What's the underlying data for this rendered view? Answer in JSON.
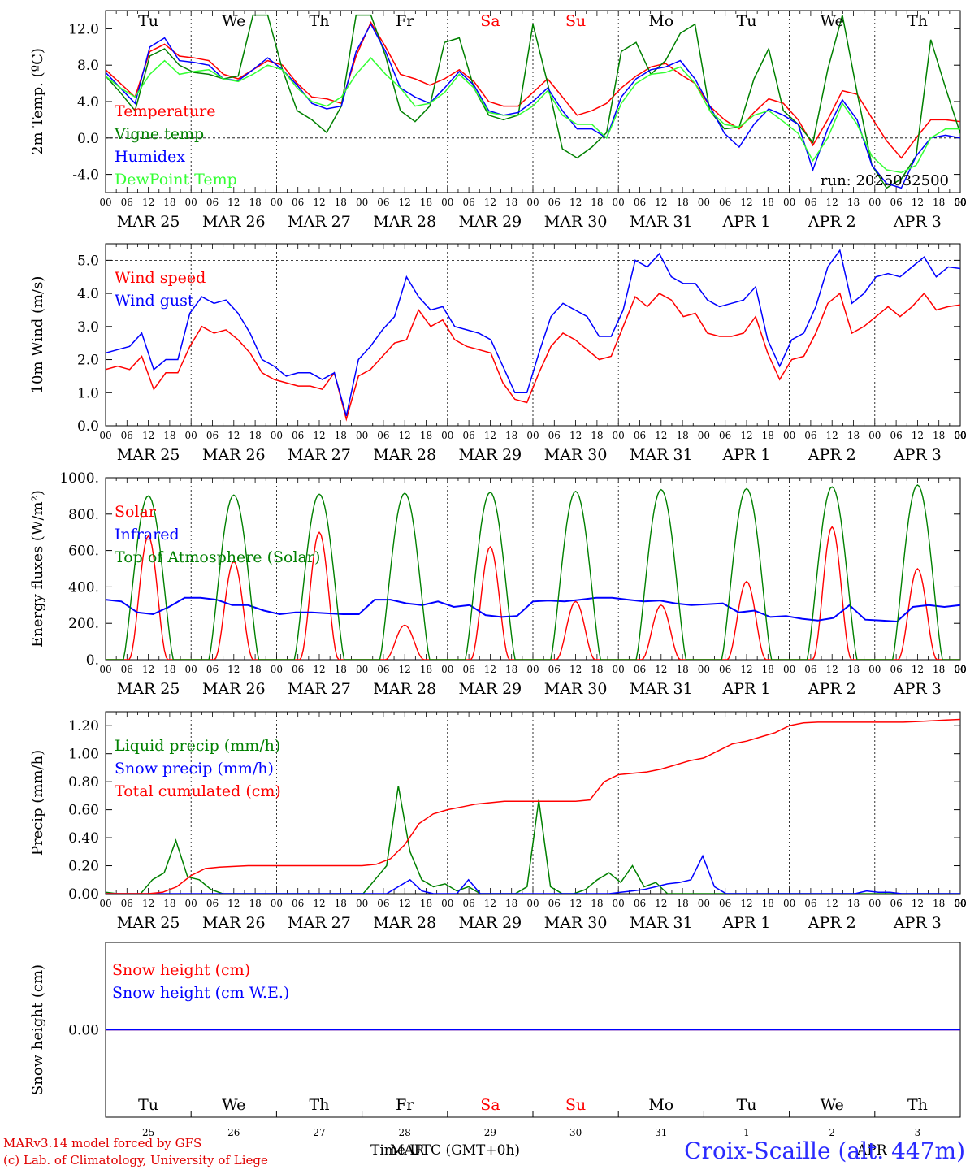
{
  "days_header": [
    "Tu",
    "We",
    "Th",
    "Fr",
    "Sa",
    "Su",
    "Mo",
    "Tu",
    "We",
    "Th"
  ],
  "weekend_color": "#ff0000",
  "hour_ticks": [
    "00",
    "06",
    "12",
    "18"
  ],
  "date_labels": [
    "MAR 25",
    "MAR 26",
    "MAR 27",
    "MAR 28",
    "MAR 29",
    "MAR 30",
    "MAR 31",
    "APR  1",
    "APR  2",
    "APR  3"
  ],
  "bottom_day_numbers": [
    "25",
    "26",
    "27",
    "28",
    "29",
    "30",
    "31",
    "1",
    "2",
    "3"
  ],
  "run_label": "run: 2025032500",
  "footer": {
    "model": "MARv3.14 model forced by GFS",
    "lab": "(c) Lab. of Climatology, University of Liege",
    "time_axis": "Time UTC (GMT+0h)",
    "month_mar": "MAR",
    "month_apr": "APR",
    "site": "Croix-Scaille (alt. 447m)"
  },
  "chart_data": [
    {
      "type": "line",
      "ylabel": "2m Temp. (ºC)",
      "ylim": [
        -6,
        14
      ],
      "yticks": [
        "-4.0",
        "0.0",
        "4.0",
        "8.0",
        "12.0"
      ],
      "ytick_values": [
        -4,
        0,
        4,
        8,
        12
      ],
      "dashed_zero": true,
      "legend_placement": "top-left",
      "series": [
        {
          "name": "Temperature",
          "color": "#ff0000",
          "values": [
            7.5,
            6,
            4.5,
            9.5,
            10.3,
            9,
            8.8,
            8.5,
            7,
            6.5,
            7.5,
            8.5,
            8,
            6,
            4.5,
            4.3,
            3.8,
            9,
            12.7,
            10,
            7,
            6.5,
            5.8,
            6.5,
            7.5,
            6.2,
            4,
            3.5,
            3.5,
            5,
            6.5,
            4.5,
            2.5,
            3,
            3.8,
            5.5,
            6.8,
            7.8,
            8.2,
            7,
            6,
            3.5,
            2,
            1,
            2.8,
            4.3,
            3.8,
            2,
            -0.8,
            2,
            5.2,
            4.8,
            2.2,
            -0.3,
            -2.2,
            0,
            2,
            2,
            1.8
          ]
        },
        {
          "name": "Vigne temp",
          "color": "#008000",
          "values": [
            6.8,
            5,
            3,
            9,
            9.8,
            8,
            7.2,
            7,
            6.5,
            6.8,
            13.5,
            13.5,
            7.5,
            3,
            2,
            0.6,
            3.5,
            13.5,
            13.5,
            9,
            3,
            1.8,
            3.5,
            10.5,
            11,
            5.5,
            2.5,
            2,
            2.5,
            12.5,
            6,
            -1.2,
            -2.2,
            -1,
            0.6,
            9.5,
            10.5,
            7,
            8.5,
            11.5,
            12.5,
            3,
            1,
            1.2,
            6.5,
            9.8,
            3,
            1.5,
            -0.5,
            7.5,
            13.5,
            5,
            -3,
            -5.5,
            -4.5,
            -2,
            10.8,
            5.5,
            0.5
          ]
        },
        {
          "name": "Humidex",
          "color": "#0000ff",
          "values": [
            7.2,
            5.5,
            3.8,
            10,
            11,
            8.5,
            8.3,
            8,
            6.5,
            6.3,
            7.5,
            8.8,
            7.5,
            5.8,
            3.8,
            3.2,
            3.5,
            9.5,
            12.5,
            9.5,
            5.5,
            4.5,
            3.8,
            5.5,
            7.3,
            5.8,
            3,
            2.5,
            2.8,
            4,
            5.5,
            3,
            1,
            1,
            0,
            4.5,
            6.5,
            7.5,
            7.8,
            8.5,
            6.5,
            3.5,
            0.5,
            -1,
            1.5,
            3.2,
            2.5,
            1.5,
            -3.5,
            1,
            4.2,
            2,
            -3,
            -5,
            -5.5,
            -2,
            0,
            0.3,
            0
          ]
        },
        {
          "name": "DewPoint Temp",
          "color": "#33ff33",
          "values": [
            6.8,
            5.5,
            4.5,
            7,
            8.5,
            7,
            7.3,
            7.5,
            6.5,
            6.2,
            7,
            8,
            7.5,
            5.5,
            4,
            3.5,
            4.5,
            7,
            8.8,
            7,
            5.5,
            3.5,
            3.8,
            5,
            7,
            5.5,
            2.8,
            2.5,
            2.5,
            3.5,
            5.2,
            2.5,
            1.5,
            1.5,
            0,
            3.8,
            6,
            7,
            7.2,
            7.8,
            6,
            3,
            1.5,
            1.2,
            2.5,
            3,
            1.8,
            0.5,
            -2.5,
            0,
            3.8,
            1.5,
            -2,
            -3.5,
            -3.8,
            -3,
            0,
            1,
            1
          ]
        }
      ]
    },
    {
      "type": "line",
      "ylabel": "10m Wind (m/s)",
      "ylim": [
        0,
        5.5
      ],
      "yticks": [
        "0.0",
        "1.0",
        "2.0",
        "3.0",
        "4.0",
        "5.0"
      ],
      "ytick_values": [
        0,
        1,
        2,
        3,
        4,
        5
      ],
      "dashed_line_at": 5.0,
      "legend_placement": "top-left",
      "series": [
        {
          "name": "Wind speed",
          "color": "#ff0000",
          "values": [
            1.7,
            1.8,
            1.7,
            2.1,
            1.1,
            1.6,
            1.6,
            2.4,
            3.0,
            2.8,
            2.9,
            2.6,
            2.2,
            1.6,
            1.4,
            1.3,
            1.2,
            1.2,
            1.1,
            1.6,
            0.2,
            1.5,
            1.7,
            2.1,
            2.5,
            2.6,
            3.5,
            3.0,
            3.2,
            2.6,
            2.4,
            2.3,
            2.2,
            1.3,
            0.8,
            0.7,
            1.6,
            2.4,
            2.8,
            2.6,
            2.3,
            2.0,
            2.1,
            3.0,
            3.9,
            3.6,
            4.0,
            3.8,
            3.3,
            3.4,
            2.8,
            2.7,
            2.7,
            2.8,
            3.3,
            2.2,
            1.4,
            2.0,
            2.1,
            2.8,
            3.7,
            4.0,
            2.8,
            3.0,
            3.3,
            3.6,
            3.3,
            3.6,
            4.0,
            3.5,
            3.6,
            3.65
          ]
        },
        {
          "name": "Wind gust",
          "color": "#0000ff",
          "values": [
            2.2,
            2.3,
            2.4,
            2.8,
            1.7,
            2.0,
            2.0,
            3.4,
            3.9,
            3.7,
            3.8,
            3.4,
            2.8,
            2.0,
            1.8,
            1.5,
            1.6,
            1.6,
            1.4,
            1.6,
            0.3,
            2.0,
            2.4,
            2.9,
            3.3,
            4.5,
            3.9,
            3.5,
            3.6,
            3.0,
            2.9,
            2.8,
            2.6,
            1.8,
            1.0,
            1.0,
            2.2,
            3.3,
            3.7,
            3.5,
            3.3,
            2.7,
            2.7,
            3.5,
            5.0,
            4.8,
            5.2,
            4.5,
            4.3,
            4.3,
            3.8,
            3.6,
            3.7,
            3.8,
            4.2,
            2.6,
            1.8,
            2.6,
            2.8,
            3.6,
            4.8,
            5.3,
            3.7,
            4.0,
            4.5,
            4.6,
            4.5,
            4.8,
            5.1,
            4.5,
            4.8,
            4.75
          ]
        }
      ]
    },
    {
      "type": "line",
      "ylabel": "Energy fluxes (W/m²)",
      "ylim": [
        0,
        1000
      ],
      "yticks": [
        "0.",
        "200.",
        "400.",
        "600.",
        "800.",
        "1000."
      ],
      "ytick_values": [
        0,
        200,
        400,
        600,
        800,
        1000
      ],
      "legend_placement": "top-left",
      "series": [
        {
          "name": "Solar",
          "color": "#ff0000",
          "daily_peaks": [
            680,
            540,
            700,
            190,
            620,
            320,
            300,
            430,
            730,
            500
          ]
        },
        {
          "name": "Infrared",
          "color": "#0000ff",
          "values": [
            330,
            320,
            260,
            250,
            290,
            340,
            340,
            330,
            300,
            300,
            270,
            250,
            260,
            260,
            255,
            250,
            250,
            330,
            330,
            310,
            300,
            320,
            290,
            300,
            245,
            235,
            240,
            320,
            325,
            320,
            330,
            340,
            340,
            330,
            320,
            325,
            310,
            300,
            305,
            310,
            260,
            270,
            235,
            240,
            225,
            215,
            230,
            300,
            220,
            215,
            210,
            290,
            300,
            290,
            300
          ]
        },
        {
          "name": "Top of Atmosphere (Solar)",
          "color": "#008000",
          "daily_peaks": [
            900,
            905,
            910,
            915,
            920,
            925,
            935,
            940,
            950,
            960
          ]
        }
      ]
    },
    {
      "type": "line",
      "ylabel": "Precip (mm/h)",
      "ylim": [
        0,
        1.3
      ],
      "yticks": [
        "0.00",
        "0.20",
        "0.40",
        "0.60",
        "0.80",
        "1.00",
        "1.20"
      ],
      "ytick_values": [
        0,
        0.2,
        0.4,
        0.6,
        0.8,
        1.0,
        1.2
      ],
      "legend_placement": "top-left",
      "series": [
        {
          "name": "Liquid precip (mm/h)",
          "color": "#008000",
          "values": [
            0.01,
            0,
            0,
            0,
            0.1,
            0.15,
            0.38,
            0.12,
            0.1,
            0.03,
            0,
            0,
            0,
            0,
            0,
            0,
            0,
            0,
            0,
            0,
            0,
            0,
            0,
            0.1,
            0.2,
            0.77,
            0.3,
            0.1,
            0.05,
            0.07,
            0.02,
            0.05,
            0,
            0,
            0,
            0,
            0.05,
            0.67,
            0.05,
            0,
            0,
            0.03,
            0.1,
            0.15,
            0.08,
            0.2,
            0.05,
            0.08,
            0,
            0,
            0,
            0,
            0,
            0,
            0,
            0,
            0,
            0,
            0,
            0,
            0,
            0,
            0,
            0,
            0,
            0,
            0,
            0,
            0,
            0,
            0,
            0,
            0,
            0
          ]
        },
        {
          "name": "Snow precip (mm/h)",
          "color": "#0000ff",
          "values": [
            0,
            0,
            0,
            0,
            0,
            0,
            0,
            0,
            0,
            0,
            0,
            0,
            0,
            0,
            0,
            0,
            0,
            0,
            0,
            0,
            0,
            0,
            0,
            0,
            0,
            0.05,
            0.1,
            0.02,
            0,
            0,
            0,
            0.1,
            0,
            0,
            0,
            0,
            0,
            0,
            0,
            0,
            0,
            0,
            0,
            0,
            0.01,
            0.02,
            0.03,
            0.05,
            0.07,
            0.08,
            0.1,
            0.27,
            0.05,
            0,
            0,
            0,
            0,
            0,
            0,
            0,
            0,
            0,
            0,
            0,
            0,
            0.02,
            0.01,
            0.01,
            0,
            0,
            0,
            0,
            0,
            0
          ]
        },
        {
          "name": "Total cumulated (cm)",
          "color": "#ff0000",
          "values": [
            0,
            0,
            0,
            0,
            0.01,
            0.05,
            0.13,
            0.18,
            0.19,
            0.195,
            0.2,
            0.2,
            0.2,
            0.2,
            0.2,
            0.2,
            0.2,
            0.2,
            0.2,
            0.21,
            0.25,
            0.35,
            0.5,
            0.57,
            0.6,
            0.62,
            0.64,
            0.65,
            0.66,
            0.66,
            0.66,
            0.66,
            0.66,
            0.66,
            0.67,
            0.8,
            0.85,
            0.86,
            0.87,
            0.89,
            0.92,
            0.95,
            0.97,
            1.02,
            1.07,
            1.09,
            1.12,
            1.15,
            1.2,
            1.22,
            1.225,
            1.225,
            1.225,
            1.225,
            1.225,
            1.225,
            1.225,
            1.23,
            1.235,
            1.24,
            1.245
          ]
        }
      ]
    },
    {
      "type": "line",
      "ylabel": "Snow height (cm)",
      "ylim": [
        -1,
        1
      ],
      "yticks": [
        "0.00"
      ],
      "ytick_values": [
        0
      ],
      "legend_placement": "top-left",
      "series": [
        {
          "name": "Snow height (cm)",
          "color": "#ff0000",
          "values": [
            0,
            0
          ]
        },
        {
          "name": "Snow height (cm W.E.)",
          "color": "#0000ff",
          "values": [
            0,
            0
          ]
        }
      ]
    }
  ]
}
